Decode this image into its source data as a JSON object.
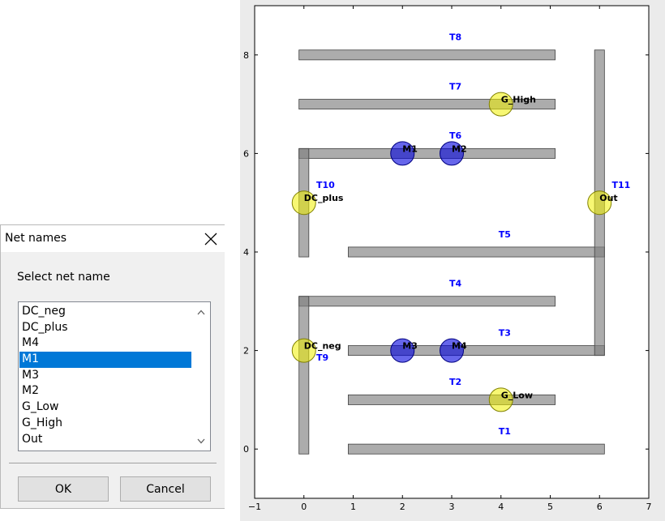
{
  "dialog": {
    "title": "Net names",
    "prompt": "Select net name",
    "options": [
      "DC_neg",
      "DC_plus",
      "M4",
      "M1",
      "M3",
      "M2",
      "G_Low",
      "G_High",
      "Out"
    ],
    "selected": "M1",
    "ok_label": "OK",
    "cancel_label": "Cancel",
    "icons": {
      "close": "close-icon",
      "scroll_up": "chevron-up-icon",
      "scroll_down": "chevron-down-icon"
    },
    "selection_color": "#0078d7"
  },
  "chart_data": {
    "type": "layout",
    "xlim": [
      -1,
      7
    ],
    "ylim": [
      -1,
      9
    ],
    "x_ticks": [
      "−1",
      "0",
      "1",
      "2",
      "3",
      "4",
      "5",
      "6",
      "7"
    ],
    "y_ticks": [
      "0",
      "2",
      "4",
      "6",
      "8"
    ],
    "grid": false,
    "colors": {
      "track": "#808080",
      "label": "#0000ff",
      "terminal": "#f0f000",
      "device": "#0000dd"
    },
    "tracks": [
      {
        "label": "T1",
        "orient": "h",
        "x": [
          1,
          6
        ],
        "y": 0
      },
      {
        "label": "T2",
        "orient": "h",
        "x": [
          1,
          5
        ],
        "y": 1
      },
      {
        "label": "T3",
        "orient": "h",
        "x": [
          1,
          6
        ],
        "y": 2
      },
      {
        "label": "T4",
        "orient": "h",
        "x": [
          0,
          5
        ],
        "y": 3
      },
      {
        "label": "T5",
        "orient": "h",
        "x": [
          1,
          6
        ],
        "y": 4
      },
      {
        "label": "T6",
        "orient": "h",
        "x": [
          0,
          5
        ],
        "y": 6
      },
      {
        "label": "T7",
        "orient": "h",
        "x": [
          0,
          5
        ],
        "y": 7
      },
      {
        "label": "T8",
        "orient": "h",
        "x": [
          0,
          5
        ],
        "y": 8
      },
      {
        "label": "T9",
        "orient": "v",
        "x": 0,
        "y": [
          0,
          3
        ]
      },
      {
        "label": "T10",
        "orient": "v",
        "x": 0,
        "y": [
          4,
          6
        ]
      },
      {
        "label": "T11",
        "orient": "v",
        "x": 6,
        "y": [
          2,
          8
        ]
      }
    ],
    "track_labels": [
      {
        "text": "T1",
        "x": 3.95,
        "y": 0.3
      },
      {
        "text": "T2",
        "x": 2.95,
        "y": 1.3
      },
      {
        "text": "T3",
        "x": 3.95,
        "y": 2.3
      },
      {
        "text": "T4",
        "x": 2.95,
        "y": 3.3
      },
      {
        "text": "T5",
        "x": 3.95,
        "y": 4.3
      },
      {
        "text": "T6",
        "x": 2.95,
        "y": 6.3
      },
      {
        "text": "T7",
        "x": 2.95,
        "y": 7.3
      },
      {
        "text": "T8",
        "x": 2.95,
        "y": 8.3
      },
      {
        "text": "T9",
        "x": 0.25,
        "y": 1.8
      },
      {
        "text": "T10",
        "x": 0.25,
        "y": 5.3
      },
      {
        "text": "T11",
        "x": 6.25,
        "y": 5.3
      }
    ],
    "nodes": [
      {
        "name": "DC_neg",
        "x": 0,
        "y": 2,
        "kind": "terminal"
      },
      {
        "name": "DC_plus",
        "x": 0,
        "y": 5,
        "kind": "terminal"
      },
      {
        "name": "M4",
        "x": 3,
        "y": 2,
        "kind": "device"
      },
      {
        "name": "M1",
        "x": 2,
        "y": 6,
        "kind": "device"
      },
      {
        "name": "M3",
        "x": 2,
        "y": 2,
        "kind": "device"
      },
      {
        "name": "M2",
        "x": 3,
        "y": 6,
        "kind": "device"
      },
      {
        "name": "G_Low",
        "x": 4,
        "y": 1,
        "kind": "terminal"
      },
      {
        "name": "G_High",
        "x": 4,
        "y": 7,
        "kind": "terminal"
      },
      {
        "name": "Out",
        "x": 6,
        "y": 5,
        "kind": "terminal"
      }
    ]
  }
}
